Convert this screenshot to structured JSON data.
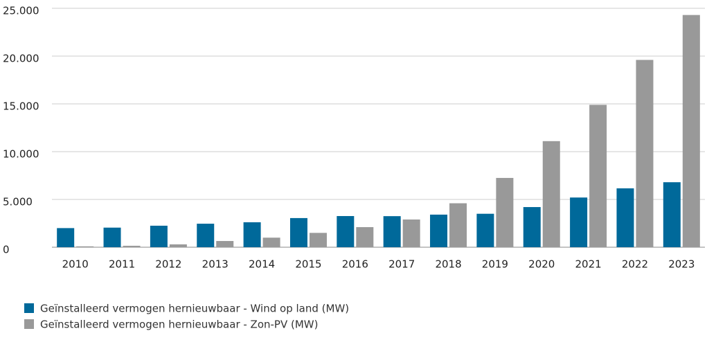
{
  "chart_data": {
    "type": "bar",
    "categories": [
      "2010",
      "2011",
      "2012",
      "2013",
      "2014",
      "2015",
      "2016",
      "2017",
      "2018",
      "2019",
      "2020",
      "2021",
      "2022",
      "2023"
    ],
    "series": [
      {
        "name": "Geïnstalleerd vermogen hernieuwbaar - Wind op land (MW)",
        "color": "#00699a",
        "values": [
          2000,
          2050,
          2250,
          2460,
          2610,
          3050,
          3260,
          3250,
          3410,
          3500,
          4200,
          5200,
          6160,
          6800
        ]
      },
      {
        "name": "Geïnstalleerd vermogen hernieuwbaar - Zon-PV (MW)",
        "color": "#999999",
        "values": [
          90,
          150,
          300,
          650,
          1000,
          1500,
          2100,
          2900,
          4600,
          7250,
          11100,
          14900,
          19600,
          24300
        ]
      }
    ],
    "ylim": [
      0,
      25000
    ],
    "yticks": [
      0,
      {
        "value": 5000,
        "label": "5.000"
      },
      {
        "value": 10000,
        "label": "10.000"
      },
      {
        "value": 15000,
        "label": "15.000"
      },
      {
        "value": 20000,
        "label": "20.000"
      },
      {
        "value": 25000,
        "label": "25.000"
      }
    ],
    "grid": true
  }
}
